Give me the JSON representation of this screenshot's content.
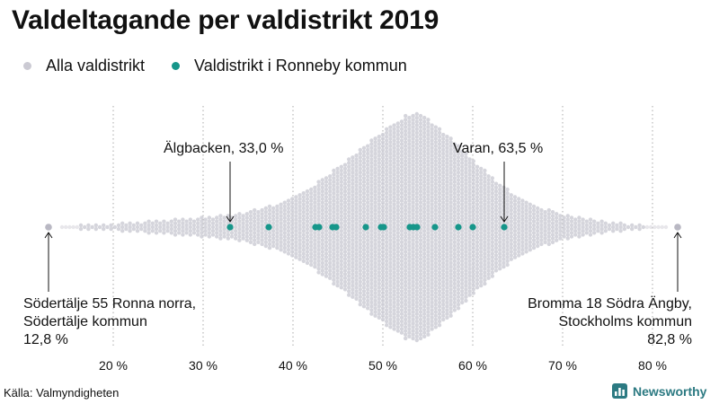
{
  "chart_data": {
    "type": "scatter",
    "subtype": "beeswarm",
    "title": "Valdeltagande per valdistrikt 2019",
    "xlabel": "",
    "ylabel": "",
    "xlim": [
      12,
      85
    ],
    "x_ticks": [
      20,
      30,
      40,
      50,
      60,
      70,
      80
    ],
    "x_tick_labels": [
      "20 %",
      "30 %",
      "40 %",
      "50 %",
      "60 %",
      "70 %",
      "80 %"
    ],
    "grid": "vertical-dotted",
    "legend_placement": "top-left",
    "series": [
      {
        "name": "Alla valdistrikt",
        "color": "#cbcad3",
        "description": "All election districts (distribution)",
        "min": 12.8,
        "max": 82.8,
        "center": 53.5
      },
      {
        "name": "Valdistrikt i Ronneby kommun",
        "color": "#16968a",
        "values": [
          33.0,
          37.3,
          42.5,
          42.9,
          44.4,
          44.8,
          48.1,
          49.8,
          50.1,
          53.0,
          53.4,
          53.8,
          55.8,
          58.4,
          60.0,
          63.5
        ]
      }
    ],
    "annotations": [
      {
        "label": "Älgbacken, 33,0 %",
        "value": 33.0,
        "series": "Valdistrikt i Ronneby kommun"
      },
      {
        "label": "Varan, 63,5 %",
        "value": 63.5,
        "series": "Valdistrikt i Ronneby kommun"
      },
      {
        "lines": [
          "Södertälje 55 Ronna norra,",
          "Södertälje kommun",
          "12,8 %"
        ],
        "value": 12.8,
        "series": "Alla valdistrikt"
      },
      {
        "lines": [
          "Bromma 18 Södra Ängby,",
          "Stockholms kommun",
          "82,8 %"
        ],
        "value": 82.8,
        "series": "Alla valdistrikt"
      }
    ]
  },
  "colors": {
    "all_districts": "#cbcad3",
    "ronneby": "#16968a",
    "brand": "#2c7a82",
    "grid": "#aaaaaa",
    "text": "#111111"
  },
  "footer": {
    "source": "Källa: Valmyndigheten",
    "brand": "Newsworthy",
    "brand_icon": "bar-chart-logo-icon"
  }
}
